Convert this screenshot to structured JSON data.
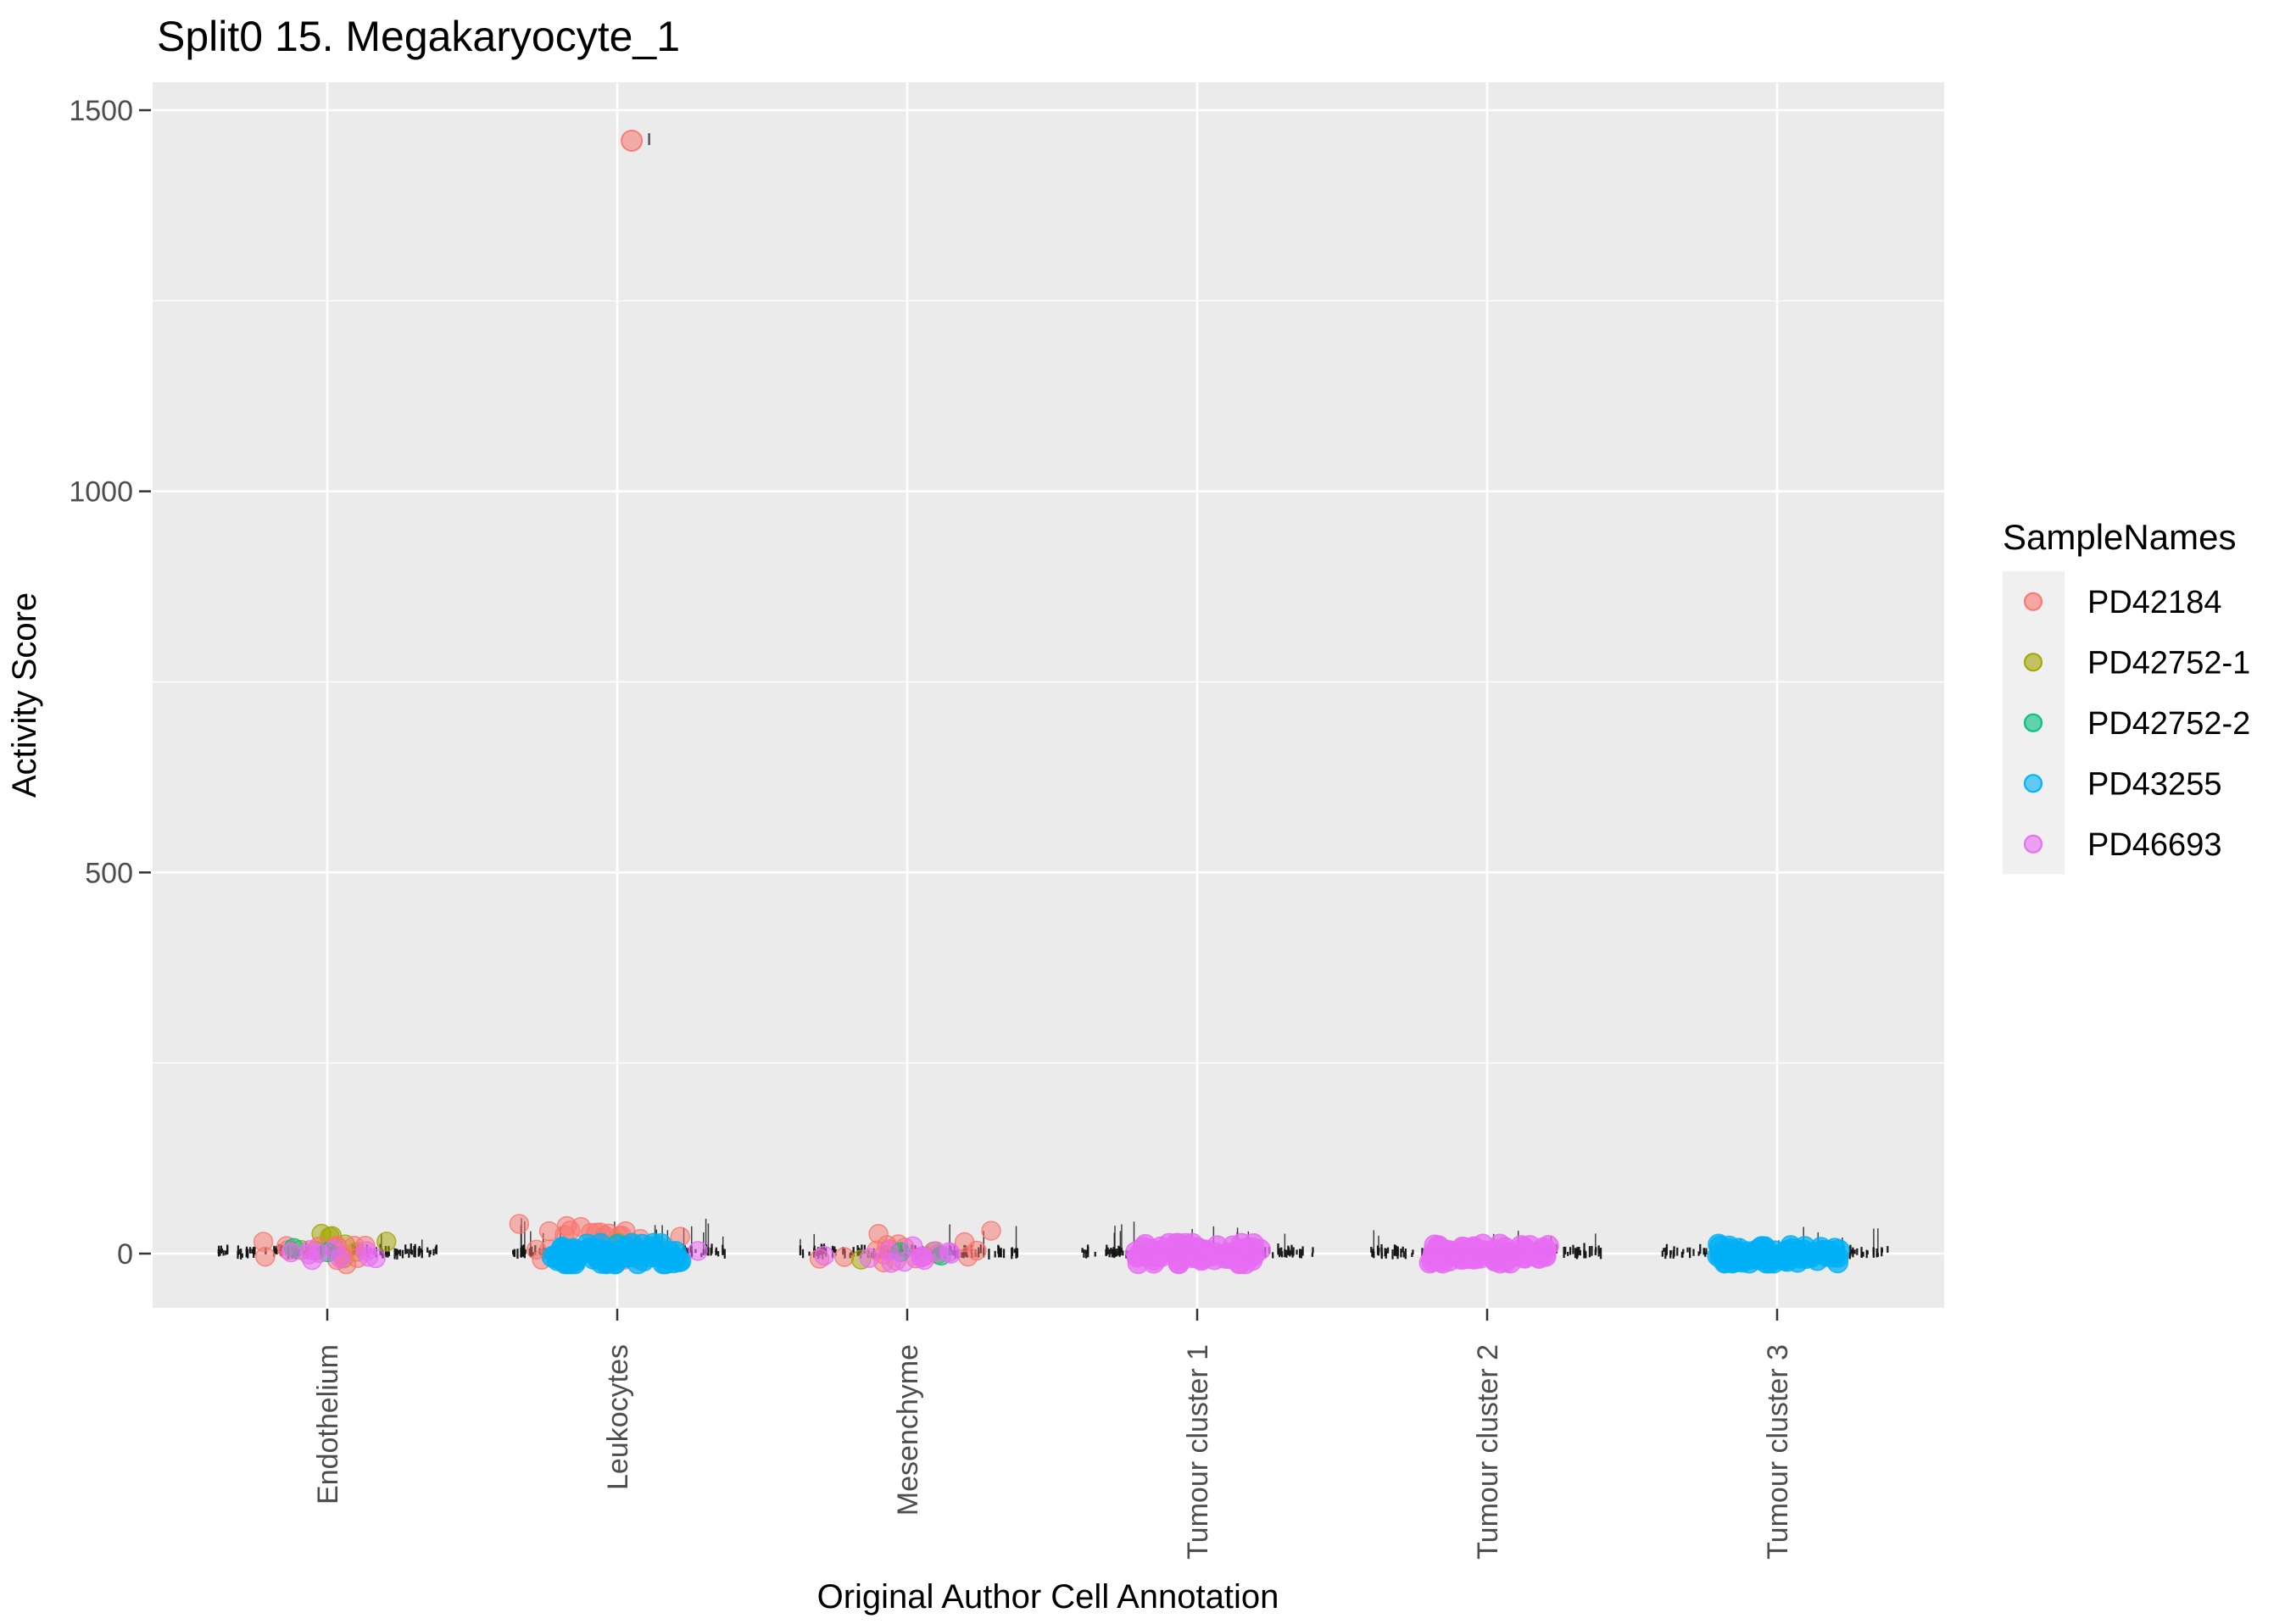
{
  "title": "Split0 15. Megakaryocyte_1",
  "axes": {
    "x_title": "Original Author Cell Annotation",
    "y_title": "Activity Score",
    "y_ticks": [
      0,
      500,
      1000,
      1500
    ],
    "y_minor_ticks": [
      250,
      750,
      1250
    ],
    "y_range": [
      -71,
      1537
    ],
    "categories": [
      "Endothelium",
      "Leukocytes",
      "Mesenchyme",
      "Tumour cluster 1",
      "Tumour cluster 2",
      "Tumour cluster 3"
    ]
  },
  "legend": {
    "title": "SampleNames",
    "items": [
      {
        "name": "PD42184",
        "color": "#F8766D"
      },
      {
        "name": "PD42752-1",
        "color": "#A3A500"
      },
      {
        "name": "PD42752-2",
        "color": "#00BF7D"
      },
      {
        "name": "PD43255",
        "color": "#00B0F6"
      },
      {
        "name": "PD46693",
        "color": "#E76BF3"
      }
    ]
  },
  "colors": {
    "panel_bg": "#EBEBEB",
    "grid": "#FFFFFF",
    "tick_mark": "#333333",
    "tick_label": "#4D4D4D",
    "rug": "#141414",
    "legend_key_bg": "#F0F0F0",
    "background": "#FFFFFF"
  },
  "chart_data": {
    "type": "scatter",
    "title": "Split0 15. Megakaryocyte_1",
    "xlabel": "Original Author Cell Annotation",
    "ylabel": "Activity Score",
    "legend_position": "right",
    "grid": true,
    "categories": [
      "Endothelium",
      "Leukocytes",
      "Mesenchyme",
      "Tumour cluster 1",
      "Tumour cluster 2",
      "Tumour cluster 3"
    ],
    "samples": [
      {
        "name": "PD42184",
        "color": "#F8766D"
      },
      {
        "name": "PD42752-1",
        "color": "#A3A500"
      },
      {
        "name": "PD42752-2",
        "color": "#00BF7D"
      },
      {
        "name": "PD43255",
        "color": "#00B0F6"
      },
      {
        "name": "PD46693",
        "color": "#E76BF3"
      }
    ],
    "ylim": [
      -71,
      1537
    ],
    "y_ticks": [
      0,
      500,
      1000,
      1500
    ],
    "clusters": [
      {
        "category": "Endothelium",
        "rug": {
          "n": 120,
          "half_width": 0.38,
          "spike_prob": 0.05,
          "max_spike": 24
        },
        "groups": [
          {
            "sample": "PD42752-1",
            "n": 9,
            "dist": "normal",
            "x_spread": 0.11,
            "y_mean": 10,
            "y_sd": 10,
            "y_clamp": [
              -12,
              26
            ],
            "radius": 11,
            "opacity": 0.5
          },
          {
            "sample": "PD42184",
            "n": 13,
            "dist": "normal",
            "x_spread": 0.12,
            "y_mean": 3,
            "y_sd": 9,
            "y_clamp": [
              -14,
              24
            ],
            "radius": 11,
            "opacity": 0.5
          },
          {
            "sample": "PD42752-2",
            "n": 2,
            "dist": "normal",
            "x_spread": 0.06,
            "y_mean": 1,
            "y_sd": 4,
            "y_clamp": [
              -10,
              12
            ],
            "radius": 11,
            "opacity": 0.55
          },
          {
            "sample": "PD46693",
            "n": 10,
            "dist": "normal",
            "x_spread": 0.1,
            "y_mean": -1,
            "y_sd": 6,
            "y_clamp": [
              -12,
              12
            ],
            "radius": 11,
            "opacity": 0.55
          }
        ]
      },
      {
        "category": "Leukocytes",
        "rug": {
          "n": 130,
          "half_width": 0.38,
          "spike_prob": 0.16,
          "max_spike": 40
        },
        "groups": [
          {
            "sample": "PD42184",
            "n": 26,
            "dist": "normal",
            "x_spread": 0.13,
            "y_mean": 18,
            "y_sd": 14,
            "y_clamp": [
              -8,
              54
            ],
            "radius": 11,
            "opacity": 0.5
          },
          {
            "sample": "PD42752-1",
            "n": 2,
            "dist": "normal",
            "x_spread": 0.08,
            "y_mean": 8,
            "y_sd": 5,
            "y_clamp": [
              -8,
              18
            ],
            "radius": 11,
            "opacity": 0.5
          },
          {
            "sample": "PD46693",
            "n": 6,
            "dist": "normal",
            "x_spread": 0.13,
            "y_mean": -4,
            "y_sd": 6,
            "y_clamp": [
              -14,
              8
            ],
            "radius": 11,
            "opacity": 0.55
          },
          {
            "sample": "PD42752-2",
            "n": 2,
            "dist": "normal",
            "x_spread": 0.07,
            "y_mean": 3,
            "y_sd": 4,
            "y_clamp": [
              -8,
              12
            ],
            "radius": 11,
            "opacity": 0.55
          },
          {
            "sample": "PD43255",
            "n": 95,
            "dist": "uniform",
            "x_spread": 0.225,
            "y_mean": -1,
            "y_sd": 8,
            "y_clamp": [
              -13,
              13
            ],
            "radius": 12,
            "opacity": 0.75
          }
        ]
      },
      {
        "category": "Mesenchyme",
        "rug": {
          "n": 120,
          "half_width": 0.38,
          "spike_prob": 0.08,
          "max_spike": 34
        },
        "groups": [
          {
            "sample": "PD42184",
            "n": 18,
            "dist": "normal",
            "x_spread": 0.13,
            "y_mean": 6,
            "y_sd": 11,
            "y_clamp": [
              -14,
              30
            ],
            "radius": 11,
            "opacity": 0.5
          },
          {
            "sample": "PD42752-1",
            "n": 2,
            "dist": "normal",
            "x_spread": 0.09,
            "y_mean": 2,
            "y_sd": 5,
            "y_clamp": [
              -10,
              14
            ],
            "radius": 11,
            "opacity": 0.5
          },
          {
            "sample": "PD42752-2",
            "n": 2,
            "dist": "normal",
            "x_spread": 0.06,
            "y_mean": 0,
            "y_sd": 4,
            "y_clamp": [
              -10,
              10
            ],
            "radius": 11,
            "opacity": 0.55
          },
          {
            "sample": "PD46693",
            "n": 12,
            "dist": "normal",
            "x_spread": 0.11,
            "y_mean": -2,
            "y_sd": 6,
            "y_clamp": [
              -12,
              10
            ],
            "radius": 11,
            "opacity": 0.55
          }
        ]
      },
      {
        "category": "Tumour cluster 1",
        "rug": {
          "n": 125,
          "half_width": 0.4,
          "spike_prob": 0.1,
          "max_spike": 38
        },
        "groups": [
          {
            "sample": "PD42184",
            "n": 2,
            "dist": "normal",
            "x_spread": 0.1,
            "y_mean": 4,
            "y_sd": 5,
            "y_clamp": [
              -8,
              14
            ],
            "radius": 11,
            "opacity": 0.5
          },
          {
            "sample": "PD42752-2",
            "n": 1,
            "dist": "normal",
            "x_spread": 0.13,
            "y_mean": 8,
            "y_sd": 3,
            "y_clamp": [
              -4,
              14
            ],
            "radius": 11,
            "opacity": 0.6
          },
          {
            "sample": "PD42752-1",
            "n": 1,
            "dist": "normal",
            "x_spread": 0.04,
            "y_mean": 10,
            "y_sd": 3,
            "y_clamp": [
              -4,
              16
            ],
            "radius": 11,
            "opacity": 0.6
          },
          {
            "sample": "PD46693",
            "n": 85,
            "dist": "uniform",
            "x_spread": 0.22,
            "y_mean": -1,
            "y_sd": 8,
            "y_clamp": [
              -13,
              13
            ],
            "radius": 12,
            "opacity": 0.75
          }
        ]
      },
      {
        "category": "Tumour cluster 2",
        "rug": {
          "n": 115,
          "half_width": 0.4,
          "spike_prob": 0.07,
          "max_spike": 26
        },
        "groups": [
          {
            "sample": "PD46693",
            "n": 75,
            "dist": "uniform",
            "x_spread": 0.215,
            "y_mean": -1,
            "y_sd": 8,
            "y_clamp": [
              -12,
              12
            ],
            "radius": 12,
            "opacity": 0.75
          }
        ]
      },
      {
        "category": "Tumour cluster 3",
        "rug": {
          "n": 115,
          "half_width": 0.4,
          "spike_prob": 0.09,
          "max_spike": 30
        },
        "groups": [
          {
            "sample": "PD43255",
            "n": 80,
            "dist": "uniform",
            "x_spread": 0.215,
            "y_mean": -1,
            "y_sd": 8,
            "y_clamp": [
              -12,
              12
            ],
            "radius": 12,
            "opacity": 0.75
          }
        ]
      }
    ],
    "outliers": [
      {
        "category": "Leukocytes",
        "sample": "PD42184",
        "y": 1460,
        "x_offset": 0.05
      }
    ],
    "stray_marks": [
      {
        "category": "Leukocytes",
        "y": 1462,
        "x_offset": 0.11,
        "height": 14
      }
    ]
  }
}
